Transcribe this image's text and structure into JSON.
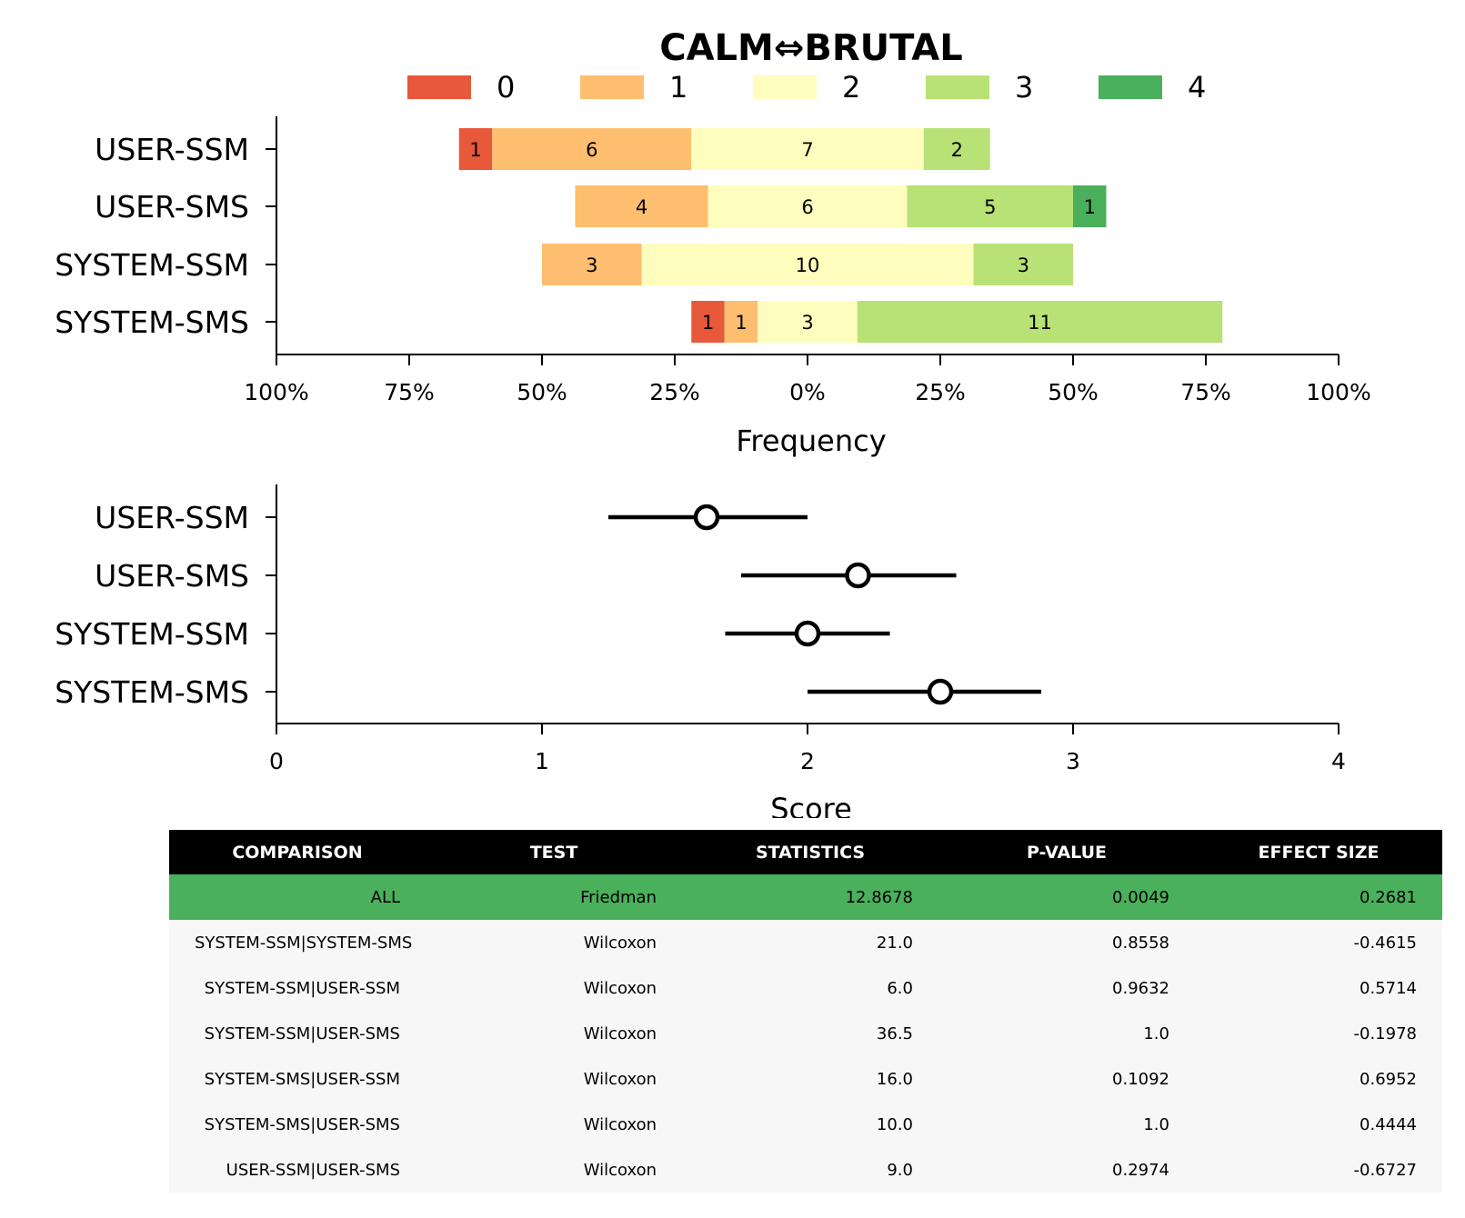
{
  "chart_data": [
    {
      "type": "bar",
      "subtype": "diverging-stacked",
      "title": "CALM⇔BRUTAL",
      "xlabel": "Frequency",
      "ylabel": "",
      "categories": [
        "USER-SSM",
        "USER-SMS",
        "SYSTEM-SSM",
        "SYSTEM-SMS"
      ],
      "xticks": [
        "100%",
        "75%",
        "50%",
        "25%",
        "0%",
        "25%",
        "50%",
        "75%",
        "100%"
      ],
      "xlim": [
        -100,
        100
      ],
      "legend_position": "top",
      "series": [
        {
          "name": "0",
          "color": "#e8583a",
          "values": [
            1,
            0,
            0,
            1
          ]
        },
        {
          "name": "1",
          "color": "#fdbe70",
          "values": [
            6,
            4,
            3,
            1
          ]
        },
        {
          "name": "2",
          "color": "#fefdbd",
          "values": [
            7,
            6,
            10,
            3
          ]
        },
        {
          "name": "3",
          "color": "#b8e176",
          "values": [
            2,
            5,
            3,
            11
          ]
        },
        {
          "name": "4",
          "color": "#4bb05c",
          "values": [
            0,
            1,
            0,
            0
          ]
        }
      ]
    },
    {
      "type": "scatter",
      "subtype": "errorbar",
      "xlabel": "Score",
      "ylabel": "",
      "categories": [
        "USER-SSM",
        "USER-SMS",
        "SYSTEM-SSM",
        "SYSTEM-SMS"
      ],
      "xlim": [
        0,
        4
      ],
      "xticks": [
        "0",
        "1",
        "2",
        "3",
        "4"
      ],
      "points": [
        {
          "category": "USER-SSM",
          "mean": 1.62,
          "low": 1.25,
          "high": 2.0
        },
        {
          "category": "USER-SMS",
          "mean": 2.19,
          "low": 1.75,
          "high": 2.56
        },
        {
          "category": "SYSTEM-SSM",
          "mean": 2.0,
          "low": 1.69,
          "high": 2.31
        },
        {
          "category": "SYSTEM-SMS",
          "mean": 2.5,
          "low": 2.0,
          "high": 2.88
        }
      ]
    },
    {
      "type": "table",
      "headers": [
        "COMPARISON",
        "TEST",
        "STATISTICS",
        "P-VALUE",
        "EFFECT SIZE"
      ],
      "header_color": "#000000",
      "highlight_color": "#4bb05c",
      "rows": [
        {
          "highlight": true,
          "cells": [
            "ALL",
            "Friedman",
            "12.8678",
            "0.0049",
            "0.2681"
          ]
        },
        {
          "highlight": false,
          "cells": [
            "SYSTEM-SSM|SYSTEM-SMS",
            "Wilcoxon",
            "21.0",
            "0.8558",
            "-0.4615"
          ]
        },
        {
          "highlight": false,
          "cells": [
            "SYSTEM-SSM|USER-SSM",
            "Wilcoxon",
            "6.0",
            "0.9632",
            "0.5714"
          ]
        },
        {
          "highlight": false,
          "cells": [
            "SYSTEM-SSM|USER-SMS",
            "Wilcoxon",
            "36.5",
            "1.0",
            "-0.1978"
          ]
        },
        {
          "highlight": false,
          "cells": [
            "SYSTEM-SMS|USER-SSM",
            "Wilcoxon",
            "16.0",
            "0.1092",
            "0.6952"
          ]
        },
        {
          "highlight": false,
          "cells": [
            "SYSTEM-SMS|USER-SMS",
            "Wilcoxon",
            "10.0",
            "1.0",
            "0.4444"
          ]
        },
        {
          "highlight": false,
          "cells": [
            "USER-SSM|USER-SMS",
            "Wilcoxon",
            "9.0",
            "0.2974",
            "-0.6727"
          ]
        }
      ]
    }
  ]
}
